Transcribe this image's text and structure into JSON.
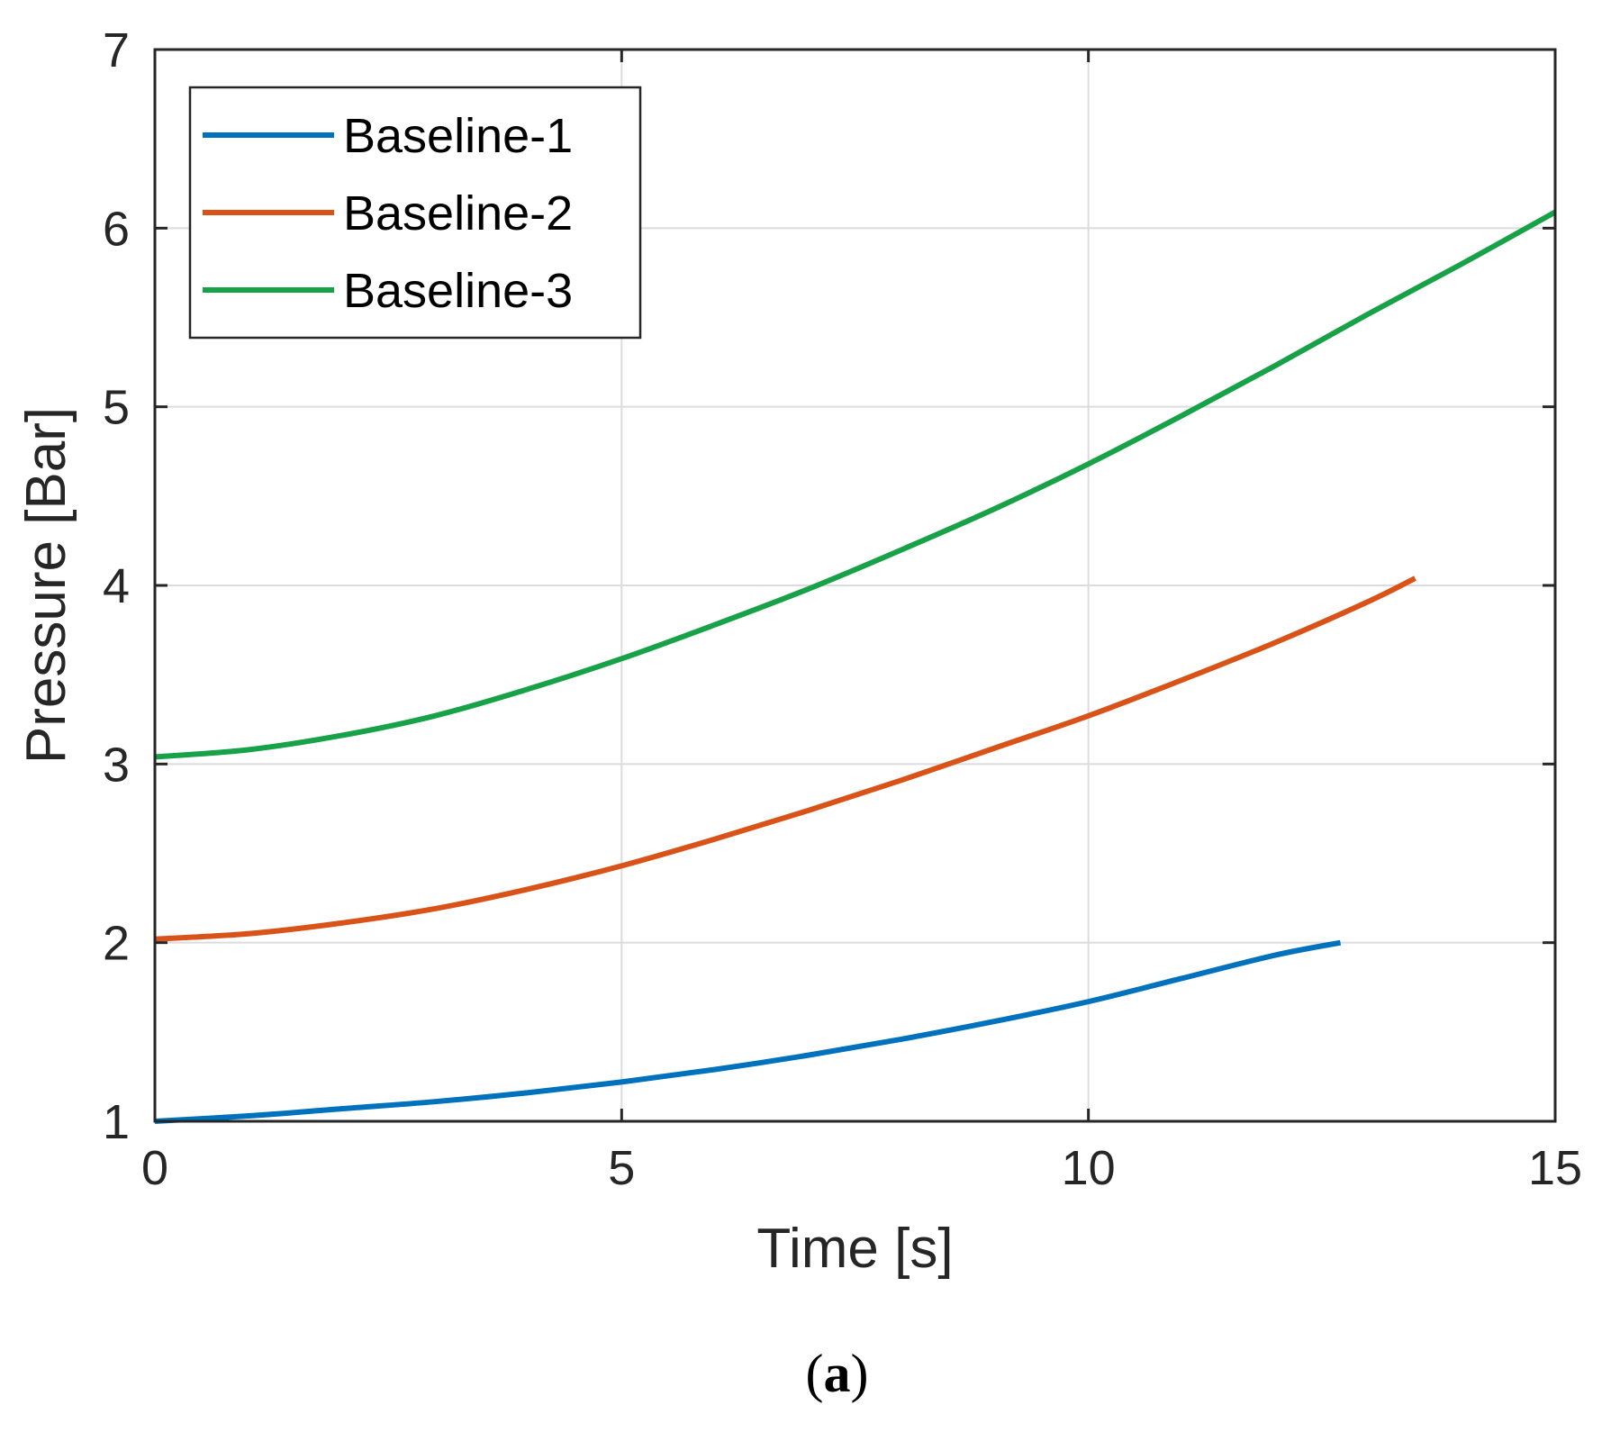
{
  "chart_data": {
    "type": "line",
    "title": "",
    "xlabel": "Time [s]",
    "ylabel": "Pressure [Bar]",
    "xlim": [
      0,
      15
    ],
    "ylim": [
      1,
      7
    ],
    "xticks": [
      0,
      5,
      10,
      15
    ],
    "yticks": [
      1,
      2,
      3,
      4,
      5,
      6,
      7
    ],
    "grid": true,
    "legend_position": "top-left",
    "series": [
      {
        "name": "Baseline-1",
        "color": "#0072BD",
        "x": [
          0,
          1,
          2,
          3,
          4,
          5,
          6,
          7,
          8,
          9,
          10,
          11,
          12,
          12.7
        ],
        "y": [
          1.0,
          1.03,
          1.07,
          1.11,
          1.16,
          1.22,
          1.29,
          1.37,
          1.46,
          1.56,
          1.67,
          1.8,
          1.93,
          2.0
        ]
      },
      {
        "name": "Baseline-2",
        "color": "#D95319",
        "x": [
          0,
          1,
          2,
          3,
          4,
          5,
          6,
          7,
          8,
          9,
          10,
          11,
          12,
          13,
          13.5
        ],
        "y": [
          2.02,
          2.05,
          2.11,
          2.19,
          2.3,
          2.43,
          2.58,
          2.74,
          2.91,
          3.09,
          3.27,
          3.47,
          3.68,
          3.91,
          4.04
        ]
      },
      {
        "name": "Baseline-3",
        "color": "#17A248",
        "x": [
          0,
          1,
          2,
          3,
          4,
          5,
          6,
          7,
          8,
          9,
          10,
          11,
          12,
          13,
          14,
          15
        ],
        "y": [
          3.04,
          3.08,
          3.16,
          3.27,
          3.42,
          3.59,
          3.78,
          3.98,
          4.2,
          4.43,
          4.68,
          4.95,
          5.23,
          5.52,
          5.8,
          6.09
        ]
      }
    ]
  },
  "caption": {
    "open": "(",
    "letter": "a",
    "close": ")"
  }
}
